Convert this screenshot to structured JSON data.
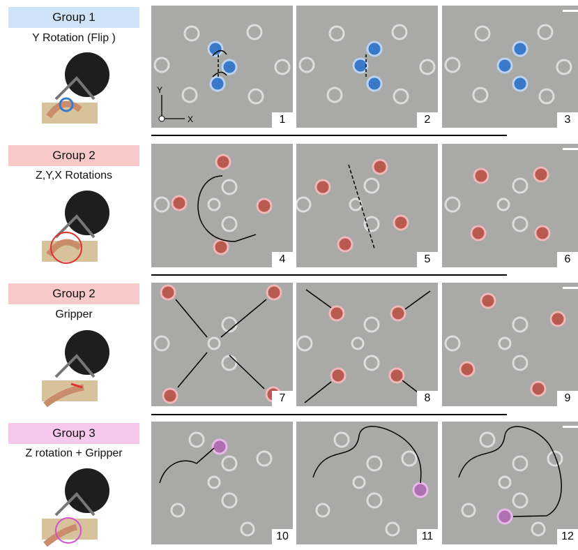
{
  "groups": [
    {
      "label": "Group 1",
      "subtitle": "Y Rotation (Flip )",
      "color": "#cfe4f8"
    },
    {
      "label": "Group 2",
      "subtitle": "Z,Y,X Rotations",
      "color": "#f7c9c9"
    },
    {
      "label": "Group 2",
      "subtitle": "Gripper",
      "color": "#f7c9c9"
    },
    {
      "label": "Group 3",
      "subtitle": "Z rotation  + Gripper",
      "color": "#f6c8ec"
    }
  ],
  "panel_numbers": [
    "1",
    "2",
    "3",
    "4",
    "5",
    "6",
    "7",
    "8",
    "9",
    "10",
    "11",
    "12"
  ],
  "axes": {
    "y": "Y",
    "x": "X"
  },
  "colors": {
    "blue": "#3a78c9",
    "red": "#c0392b",
    "magenta": "#b24bb5",
    "background": "#a9a9a7"
  }
}
